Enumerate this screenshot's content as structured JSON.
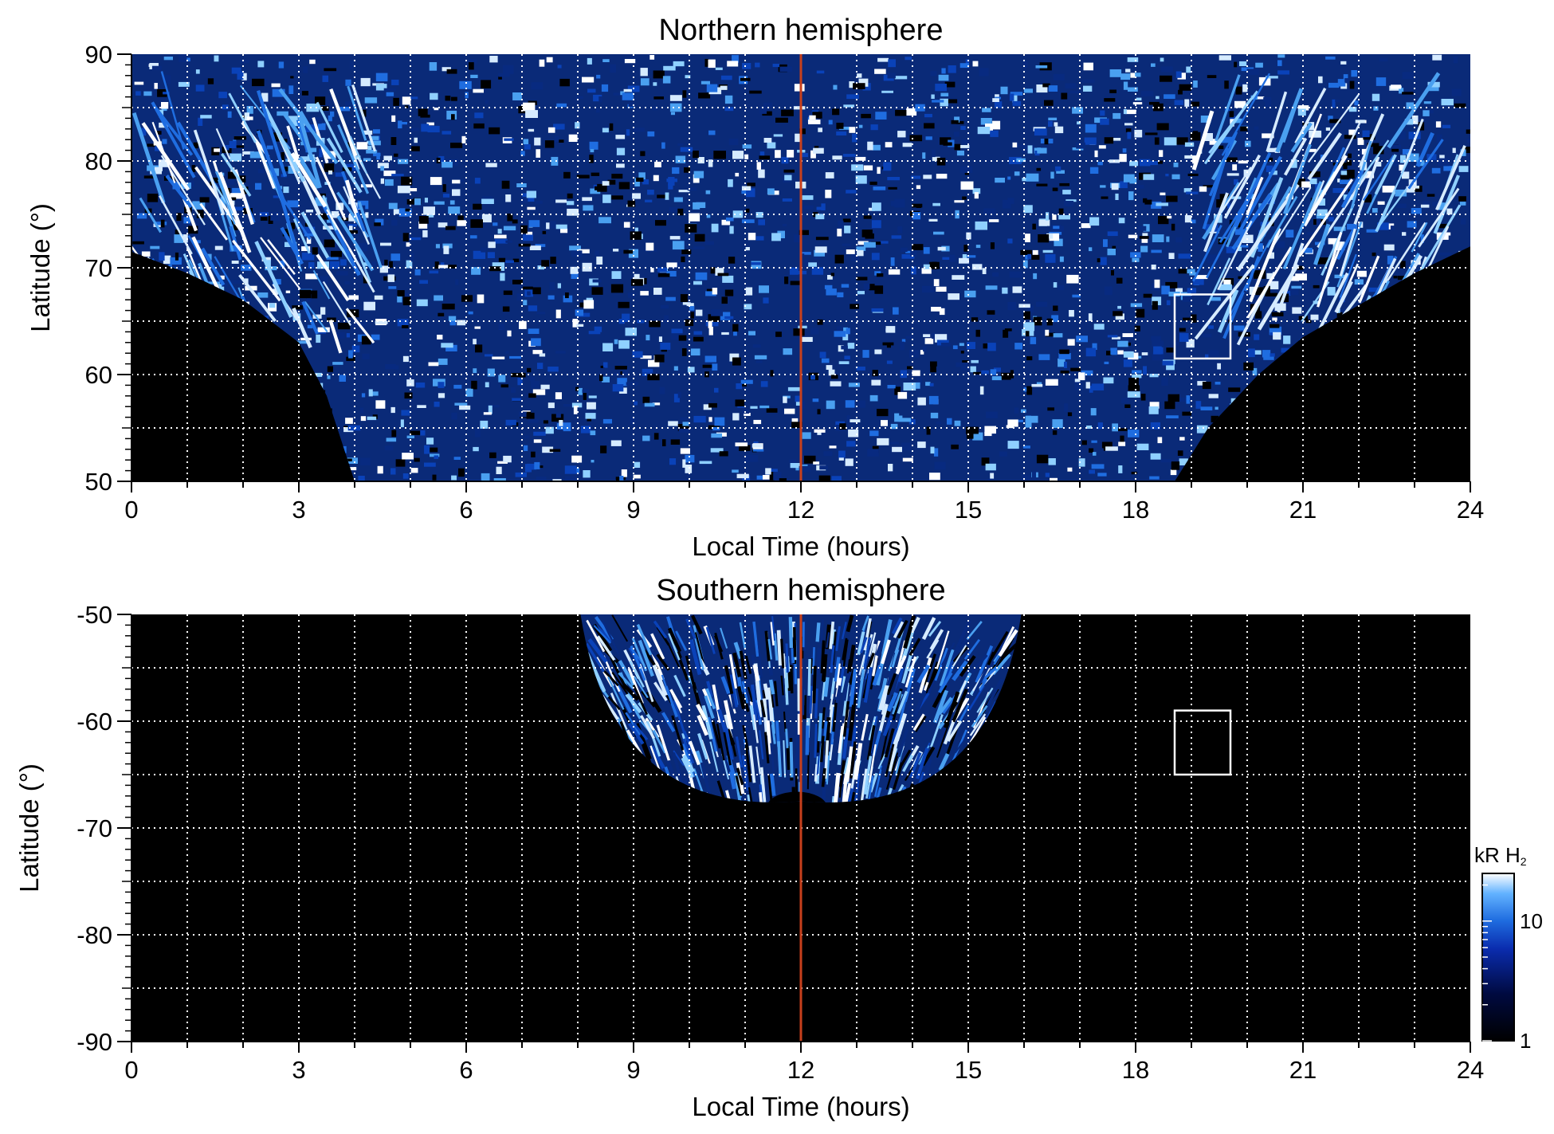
{
  "chart_data": [
    {
      "type": "heatmap",
      "title": "Northern hemisphere",
      "xlabel": "Local Time (hours)",
      "ylabel": "Latitude (°)",
      "xlim": [
        0,
        24
      ],
      "ylim": [
        50,
        90
      ],
      "x_ticks": [
        "0",
        "3",
        "6",
        "9",
        "12",
        "15",
        "18",
        "21",
        "24"
      ],
      "y_ticks": [
        "50",
        "60",
        "70",
        "80",
        "90"
      ],
      "grid": true,
      "reference_line": {
        "x": 12,
        "color": "#c8401c"
      },
      "box": {
        "x": [
          18.7,
          19.7
        ],
        "y": [
          61.5,
          67.5
        ],
        "color": "#ffffff"
      },
      "coverage_edge": [
        {
          "lt": 0,
          "lat": 71.5
        },
        {
          "lt": 1,
          "lat": 69.5
        },
        {
          "lt": 2,
          "lat": 67
        },
        {
          "lt": 3,
          "lat": 63
        },
        {
          "lt": 3.5,
          "lat": 58
        },
        {
          "lt": 4,
          "lat": 50
        },
        {
          "lt": 18.7,
          "lat": 50
        },
        {
          "lt": 19.3,
          "lat": 55
        },
        {
          "lt": 20.2,
          "lat": 60
        },
        {
          "lt": 21,
          "lat": 63.5
        },
        {
          "lt": 22,
          "lat": 66.5
        },
        {
          "lt": 23,
          "lat": 69.5
        },
        {
          "lt": 24,
          "lat": 72
        }
      ]
    },
    {
      "type": "heatmap",
      "title": "Southern hemisphere",
      "xlabel": "Local Time (hours)",
      "ylabel": "Latitude (°)",
      "xlim": [
        0,
        24
      ],
      "ylim": [
        -90,
        -50
      ],
      "x_ticks": [
        "0",
        "3",
        "6",
        "9",
        "12",
        "15",
        "18",
        "21",
        "24"
      ],
      "y_ticks": [
        "-50",
        "-60",
        "-70",
        "-80",
        "-90"
      ],
      "grid": true,
      "reference_line": {
        "x": 12,
        "color": "#c8401c"
      },
      "box": {
        "x": [
          18.7,
          19.7
        ],
        "y": [
          -65,
          -59
        ],
        "color": "#ffffff"
      },
      "coverage": {
        "lt_center": 12,
        "lt_halfwidth_at_-50": 3.95,
        "lat_min": -67.5
      }
    }
  ],
  "colorbar": {
    "label": "kR H",
    "label_sub": "2",
    "ticks": [
      "1",
      "10"
    ],
    "scale": "log",
    "range": [
      1,
      25
    ],
    "colors": [
      "#000000",
      "#000a40",
      "#0a2cae",
      "#1f6de0",
      "#62b2ff",
      "#ffffff"
    ]
  }
}
